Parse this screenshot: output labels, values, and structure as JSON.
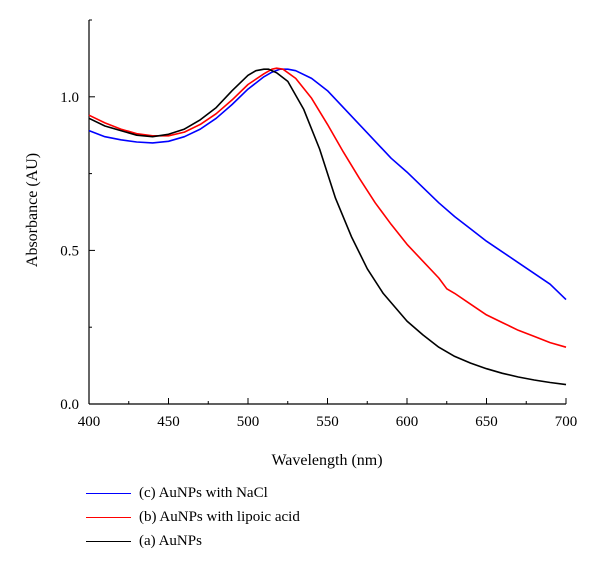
{
  "chart_data": {
    "type": "line",
    "xlabel": "Wavelength (nm)",
    "ylabel": "Absorbance (AU)",
    "xlim": [
      400,
      700
    ],
    "ylim": [
      0,
      1.25
    ],
    "xticks": [
      "400",
      "450",
      "500",
      "550",
      "600",
      "650",
      "700"
    ],
    "yticks": [
      "0.0",
      "0.5",
      "1.0"
    ],
    "grid": false,
    "legend_position": "bottom-left, below plot",
    "series": [
      {
        "name": "(c) AuNPs with NaCl",
        "color": "#0000ff",
        "points": [
          [
            400,
            0.89
          ],
          [
            410,
            0.87
          ],
          [
            420,
            0.86
          ],
          [
            430,
            0.853
          ],
          [
            440,
            0.85
          ],
          [
            450,
            0.855
          ],
          [
            460,
            0.87
          ],
          [
            470,
            0.895
          ],
          [
            480,
            0.93
          ],
          [
            490,
            0.975
          ],
          [
            500,
            1.025
          ],
          [
            510,
            1.065
          ],
          [
            515,
            1.08
          ],
          [
            520,
            1.09
          ],
          [
            525,
            1.09
          ],
          [
            530,
            1.085
          ],
          [
            540,
            1.06
          ],
          [
            550,
            1.02
          ],
          [
            560,
            0.965
          ],
          [
            570,
            0.91
          ],
          [
            580,
            0.855
          ],
          [
            590,
            0.8
          ],
          [
            600,
            0.755
          ],
          [
            610,
            0.705
          ],
          [
            620,
            0.655
          ],
          [
            630,
            0.61
          ],
          [
            640,
            0.57
          ],
          [
            650,
            0.53
          ],
          [
            660,
            0.495
          ],
          [
            670,
            0.46
          ],
          [
            680,
            0.425
          ],
          [
            690,
            0.39
          ],
          [
            700,
            0.34
          ]
        ]
      },
      {
        "name": "(b) AuNPs with lipoic acid",
        "color": "#ff0000",
        "points": [
          [
            400,
            0.94
          ],
          [
            410,
            0.915
          ],
          [
            420,
            0.895
          ],
          [
            430,
            0.88
          ],
          [
            440,
            0.873
          ],
          [
            450,
            0.873
          ],
          [
            460,
            0.885
          ],
          [
            470,
            0.91
          ],
          [
            480,
            0.945
          ],
          [
            490,
            0.99
          ],
          [
            500,
            1.04
          ],
          [
            510,
            1.075
          ],
          [
            515,
            1.09
          ],
          [
            518,
            1.093
          ],
          [
            522,
            1.09
          ],
          [
            530,
            1.06
          ],
          [
            540,
            0.995
          ],
          [
            550,
            0.91
          ],
          [
            560,
            0.82
          ],
          [
            570,
            0.735
          ],
          [
            580,
            0.655
          ],
          [
            590,
            0.585
          ],
          [
            600,
            0.52
          ],
          [
            610,
            0.465
          ],
          [
            620,
            0.41
          ],
          [
            625,
            0.375
          ],
          [
            630,
            0.36
          ],
          [
            640,
            0.325
          ],
          [
            650,
            0.29
          ],
          [
            660,
            0.265
          ],
          [
            670,
            0.24
          ],
          [
            680,
            0.22
          ],
          [
            690,
            0.2
          ],
          [
            700,
            0.185
          ]
        ]
      },
      {
        "name": "(a) AuNPs",
        "color": "#000000",
        "points": [
          [
            400,
            0.93
          ],
          [
            410,
            0.905
          ],
          [
            420,
            0.89
          ],
          [
            430,
            0.875
          ],
          [
            440,
            0.87
          ],
          [
            450,
            0.878
          ],
          [
            460,
            0.895
          ],
          [
            470,
            0.925
          ],
          [
            480,
            0.965
          ],
          [
            490,
            1.02
          ],
          [
            500,
            1.07
          ],
          [
            505,
            1.085
          ],
          [
            510,
            1.09
          ],
          [
            513,
            1.09
          ],
          [
            518,
            1.078
          ],
          [
            525,
            1.05
          ],
          [
            535,
            0.96
          ],
          [
            545,
            0.83
          ],
          [
            555,
            0.67
          ],
          [
            565,
            0.545
          ],
          [
            575,
            0.44
          ],
          [
            585,
            0.36
          ],
          [
            600,
            0.27
          ],
          [
            610,
            0.225
          ],
          [
            620,
            0.185
          ],
          [
            630,
            0.155
          ],
          [
            640,
            0.133
          ],
          [
            650,
            0.115
          ],
          [
            660,
            0.1
          ],
          [
            670,
            0.088
          ],
          [
            680,
            0.078
          ],
          [
            690,
            0.07
          ],
          [
            700,
            0.063
          ]
        ]
      }
    ]
  }
}
